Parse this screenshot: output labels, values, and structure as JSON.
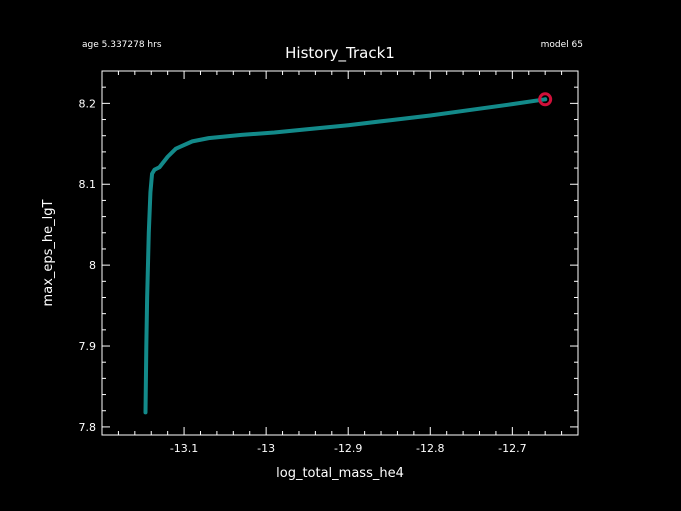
{
  "header": {
    "age_text": "age 5.337278 hrs",
    "model_text": "model 65"
  },
  "chart_data": {
    "type": "line",
    "title": "History_Track1",
    "xlabel": "log_total_mass_he4",
    "ylabel": "max_eps_he_lgT",
    "xlim": [
      -13.2,
      -12.62
    ],
    "ylim": [
      7.79,
      8.24
    ],
    "x_ticks": [
      -13.1,
      -13,
      -12.9,
      -12.8,
      -12.7
    ],
    "x_tick_labels": [
      "-13.1",
      "-13",
      "-12.9",
      "-12.8",
      "-12.7"
    ],
    "y_ticks": [
      7.8,
      7.9,
      8,
      8.1,
      8.2
    ],
    "y_tick_labels": [
      "7.8",
      "7.9",
      "8",
      "8.1",
      "8.2"
    ],
    "grid": false,
    "line_color": "#138a8a",
    "marker_color": "#d0103a",
    "background_color": "#000000",
    "axis_color": "#ffffff",
    "series": [
      {
        "x": [
          -13.147,
          -13.146,
          -13.145,
          -13.143,
          -13.141,
          -13.139,
          -13.136,
          -13.13,
          -13.12,
          -13.11,
          -13.09,
          -13.07,
          -13.03,
          -12.99,
          -12.95,
          -12.9,
          -12.85,
          -12.8,
          -12.75,
          -12.7,
          -12.66
        ],
        "y": [
          7.818,
          7.9,
          7.96,
          8.04,
          8.09,
          8.113,
          8.118,
          8.121,
          8.134,
          8.144,
          8.153,
          8.157,
          8.161,
          8.164,
          8.168,
          8.173,
          8.179,
          8.185,
          8.192,
          8.199,
          8.205
        ]
      }
    ],
    "current_point": {
      "x": -12.66,
      "y": 8.205
    }
  }
}
